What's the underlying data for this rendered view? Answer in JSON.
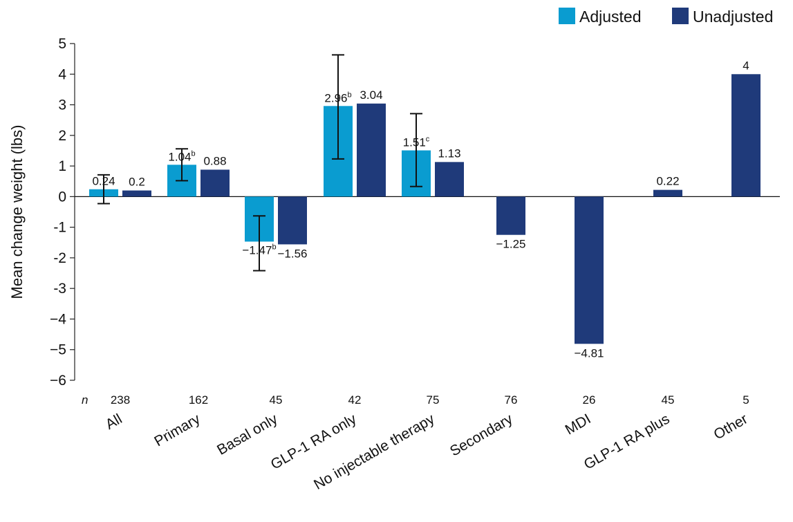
{
  "chart_data": {
    "type": "bar",
    "title": "",
    "xlabel": "",
    "ylabel": "Mean change weight (lbs)",
    "ylim": [
      -6,
      5
    ],
    "yticks": [
      5,
      4,
      3,
      2,
      1,
      0,
      -1,
      -2,
      -3,
      -4,
      -5,
      -6
    ],
    "ytick_labels": [
      "5",
      "4",
      "3",
      "2",
      "1",
      "0",
      "-1",
      "-2",
      "-3",
      "−4",
      "−5",
      "−6"
    ],
    "grid": false,
    "legend_position": "top-right",
    "n_label": "n",
    "categories": [
      "All",
      "Primary",
      "Basal only",
      "GLP-1 RA only",
      "No injectable therapy",
      "Secondary",
      "MDI",
      "GLP-1 RA plus",
      "Other"
    ],
    "n_values": [
      "238",
      "162",
      "45",
      "42",
      "75",
      "76",
      "26",
      "45",
      "5"
    ],
    "series": [
      {
        "name": "Adjusted",
        "color": "#0a9cd0",
        "values": [
          0.24,
          1.04,
          -1.47,
          2.96,
          1.51,
          null,
          null,
          null,
          null
        ],
        "labels": [
          "0.24",
          "1.04",
          "−1.47",
          "2.96",
          "1.51",
          null,
          null,
          null,
          null
        ],
        "label_sup": [
          "",
          "b",
          "b",
          "b",
          "c",
          null,
          null,
          null,
          null
        ],
        "error_low": [
          -0.23,
          0.52,
          -2.42,
          1.23,
          0.33,
          null,
          null,
          null,
          null
        ],
        "error_high": [
          0.71,
          1.56,
          -0.63,
          4.63,
          2.71,
          null,
          null,
          null,
          null
        ]
      },
      {
        "name": "Unadjusted",
        "color": "#1f3a7a",
        "values": [
          0.2,
          0.88,
          -1.56,
          3.04,
          1.13,
          -1.25,
          -4.81,
          0.22,
          4
        ],
        "labels": [
          "0.2",
          "0.88",
          "−1.56",
          "3.04",
          "1.13",
          "−1.25",
          "−4.81",
          "0.22",
          "4"
        ]
      }
    ]
  }
}
